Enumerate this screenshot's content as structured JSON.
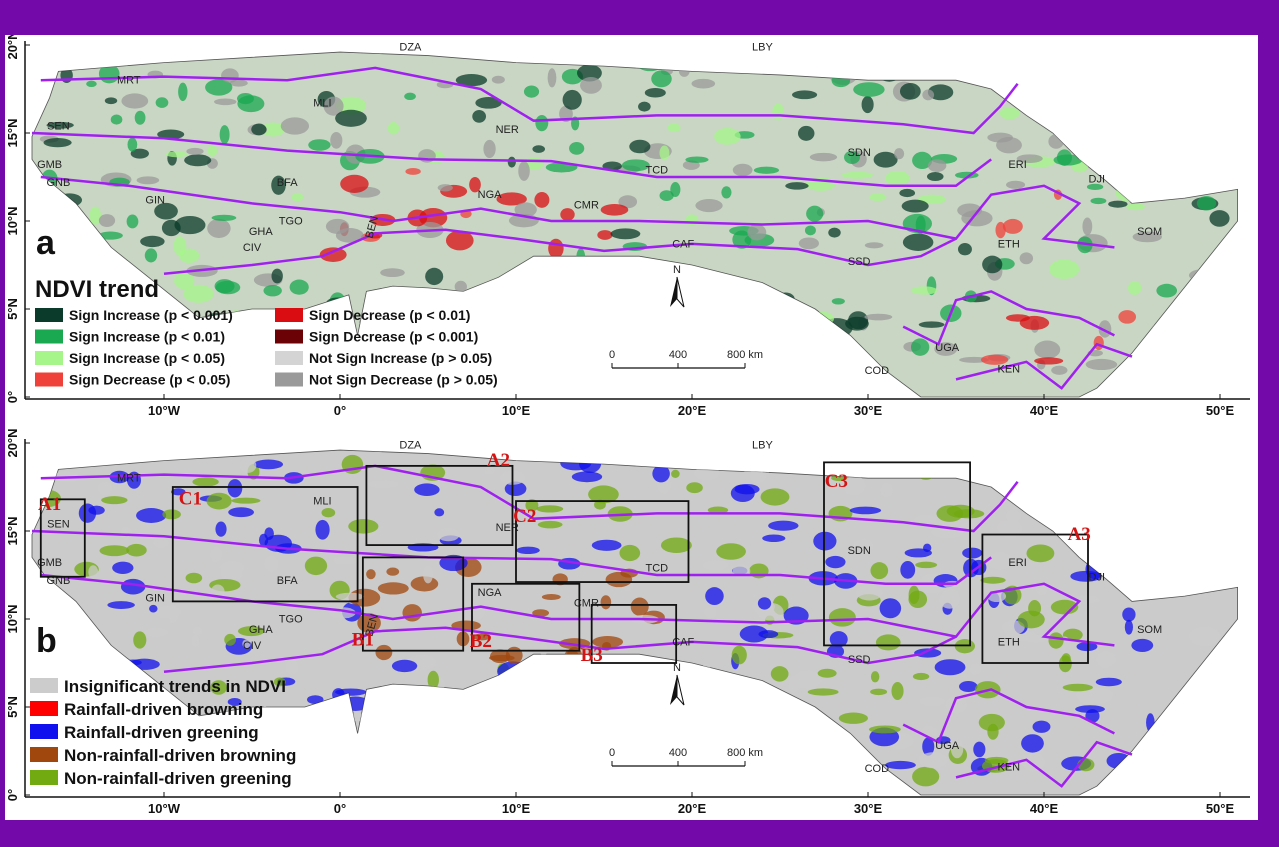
{
  "panels": {
    "a": {
      "letter": "a",
      "legend_title": "NDVI trend",
      "legend": [
        {
          "label": "Sign Increase (p < 0.001)",
          "color": "#0b3b2a"
        },
        {
          "label": "Sign Increase (p < 0.01)",
          "color": "#1aa850"
        },
        {
          "label": "Sign Increase (p < 0.05)",
          "color": "#a6f58a"
        },
        {
          "label": "Sign Decrease (p < 0.05)",
          "color": "#f0403a"
        },
        {
          "label": "Sign Decrease (p < 0.01)",
          "color": "#d90d12"
        },
        {
          "label": "Sign Decrease (p < 0.001)",
          "color": "#6b0306"
        },
        {
          "label": "Not Sign Increase (p > 0.05)",
          "color": "#d4d4d4"
        },
        {
          "label": "Not Sign Decrease (p > 0.05)",
          "color": "#9a9a9a"
        }
      ]
    },
    "b": {
      "letter": "b",
      "legend": [
        {
          "label": "Insignificant trends in NDVI",
          "color": "#cccccc"
        },
        {
          "label": "Rainfall-driven browning",
          "color": "#ff0000"
        },
        {
          "label": "Rainfall-driven greening",
          "color": "#1010ee"
        },
        {
          "label": "Non-rainfall-driven browning",
          "color": "#a0470e"
        },
        {
          "label": "Non-rainfall-driven greening",
          "color": "#72aa12"
        }
      ],
      "boxes": [
        "A1",
        "C1",
        "A2",
        "B1",
        "C2",
        "B2",
        "B3",
        "C3",
        "A3"
      ]
    }
  },
  "countries": [
    "MRT",
    "DZA",
    "LBY",
    "MLI",
    "NER",
    "SEN",
    "GMB",
    "GNB",
    "GIN",
    "BFA",
    "TCD",
    "SDN",
    "ERI",
    "DJI",
    "NGA",
    "CMR",
    "GHA",
    "TGO",
    "BEN",
    "CIV",
    "CAF",
    "ETH",
    "SOM",
    "SSD",
    "UGA",
    "KEN",
    "COD"
  ],
  "lon_ticks": [
    "10°W",
    "0°",
    "10°E",
    "20°E",
    "30°E",
    "40°E",
    "50°E"
  ],
  "lat_ticks": [
    "20°N",
    "15°N",
    "10°N",
    "5°N",
    "0°"
  ],
  "scale": {
    "north": "N",
    "labels": [
      "0",
      "400",
      "800 km"
    ]
  },
  "colors": {
    "frame": "#7209a8",
    "boundary": "#a020f0",
    "box_label": "#d41414"
  }
}
